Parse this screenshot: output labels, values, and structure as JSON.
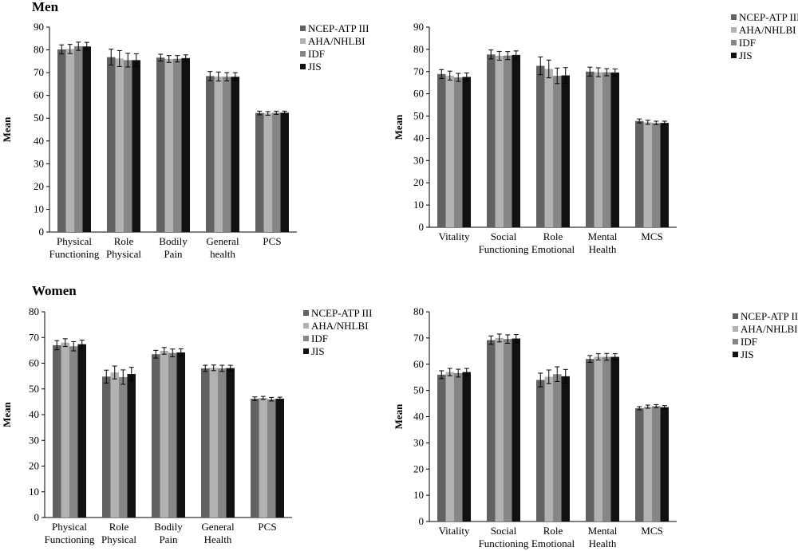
{
  "sections": [
    "Men",
    "Women"
  ],
  "series_colors": [
    "#626262",
    "#b2b2b2",
    "#868686",
    "#111111"
  ],
  "chart_data": [
    {
      "type": "bar",
      "section": "Men",
      "categories": [
        [
          "Physical",
          "Functioning"
        ],
        [
          "Role",
          "Physical"
        ],
        [
          "Bodily",
          "Pain"
        ],
        [
          "General",
          "health"
        ],
        [
          "PCS"
        ]
      ],
      "series": [
        {
          "name": "NCEP-ATP III",
          "values": [
            80.2,
            76.8,
            76.6,
            68.5,
            52.3
          ],
          "errors": [
            2.0,
            3.5,
            1.5,
            2.0,
            0.8
          ]
        },
        {
          "name": "AHA/NHLBI",
          "values": [
            80.4,
            76.2,
            76.0,
            68.3,
            52.1
          ],
          "errors": [
            2.0,
            3.5,
            1.5,
            2.0,
            0.8
          ]
        },
        {
          "name": "IDF",
          "values": [
            81.6,
            75.5,
            76.1,
            68.2,
            52.4
          ],
          "errors": [
            1.8,
            3.0,
            1.4,
            1.8,
            0.7
          ]
        },
        {
          "name": "JIS",
          "values": [
            81.5,
            75.5,
            76.4,
            68.2,
            52.4
          ],
          "errors": [
            1.8,
            2.8,
            1.4,
            1.8,
            0.7
          ]
        }
      ],
      "ylabel": "Mean",
      "ylim": [
        0,
        90
      ],
      "yticks": [
        0,
        10,
        20,
        30,
        40,
        50,
        60,
        70,
        80,
        90
      ],
      "grid": false,
      "legend": "top-right"
    },
    {
      "type": "bar",
      "section": "Men",
      "categories": [
        [
          "Vitality"
        ],
        [
          "Social",
          "Functioning"
        ],
        [
          "Role",
          "Emotional"
        ],
        [
          "Mental",
          "Health"
        ],
        [
          "MCS"
        ]
      ],
      "series": [
        {
          "name": "NCEP-ATP III",
          "values": [
            68.9,
            77.7,
            72.6,
            70.0,
            47.8
          ],
          "errors": [
            2.0,
            2.0,
            4.0,
            2.0,
            0.9
          ]
        },
        {
          "name": "AHA/NHLBI",
          "values": [
            68.2,
            77.1,
            71.2,
            69.7,
            47.2
          ],
          "errors": [
            2.0,
            2.0,
            4.0,
            2.0,
            0.9
          ]
        },
        {
          "name": "IDF",
          "values": [
            67.4,
            77.2,
            68.1,
            69.7,
            46.9
          ],
          "errors": [
            1.8,
            1.8,
            3.5,
            1.6,
            0.8
          ]
        },
        {
          "name": "JIS",
          "values": [
            67.6,
            77.5,
            68.3,
            69.6,
            46.9
          ],
          "errors": [
            1.8,
            1.8,
            3.5,
            1.6,
            0.8
          ]
        }
      ],
      "ylabel": "Mean",
      "ylim": [
        0,
        90
      ],
      "yticks": [
        0,
        10,
        20,
        30,
        40,
        50,
        60,
        70,
        80,
        90
      ],
      "grid": false,
      "legend": "top-right"
    },
    {
      "type": "bar",
      "section": "Women",
      "categories": [
        [
          "Physical",
          "Functioning"
        ],
        [
          "Role",
          "Physical"
        ],
        [
          "Bodily",
          "Pain"
        ],
        [
          "General",
          "Health"
        ],
        [
          "PCS"
        ]
      ],
      "series": [
        {
          "name": "NCEP-ATP III",
          "values": [
            67.0,
            54.8,
            63.5,
            58.0,
            46.2
          ],
          "errors": [
            1.8,
            2.5,
            1.5,
            1.2,
            0.7
          ]
        },
        {
          "name": "AHA/NHLBI",
          "values": [
            68.0,
            56.4,
            64.8,
            58.2,
            46.5
          ],
          "errors": [
            1.5,
            2.5,
            1.3,
            1.1,
            0.6
          ]
        },
        {
          "name": "IDF",
          "values": [
            66.6,
            54.6,
            64.0,
            58.0,
            46.0
          ],
          "errors": [
            1.8,
            2.8,
            1.5,
            1.2,
            0.7
          ]
        },
        {
          "name": "JIS",
          "values": [
            67.4,
            55.8,
            64.2,
            58.1,
            46.2
          ],
          "errors": [
            1.6,
            2.6,
            1.4,
            1.1,
            0.6
          ]
        }
      ],
      "ylabel": "Mean",
      "ylim": [
        0,
        80
      ],
      "yticks": [
        0,
        10,
        20,
        30,
        40,
        50,
        60,
        70,
        80
      ],
      "grid": false,
      "legend": "top-right"
    },
    {
      "type": "bar",
      "section": "Women",
      "categories": [
        [
          "Vitality"
        ],
        [
          "Social",
          "Functioning"
        ],
        [
          "Role",
          "Emotional"
        ],
        [
          "Mental",
          "Health"
        ],
        [
          "MCS"
        ]
      ],
      "series": [
        {
          "name": "NCEP-ATP III",
          "values": [
            56.0,
            69.2,
            54.0,
            62.0,
            43.2
          ],
          "errors": [
            1.5,
            1.6,
            2.6,
            1.3,
            0.6
          ]
        },
        {
          "name": "AHA/NHLBI",
          "values": [
            57.0,
            70.0,
            55.2,
            62.8,
            43.8
          ],
          "errors": [
            1.4,
            1.5,
            2.6,
            1.2,
            0.6
          ]
        },
        {
          "name": "IDF",
          "values": [
            56.6,
            69.6,
            56.2,
            62.8,
            44.0
          ],
          "errors": [
            1.5,
            1.6,
            2.8,
            1.3,
            0.6
          ]
        },
        {
          "name": "JIS",
          "values": [
            57.0,
            69.8,
            55.4,
            62.8,
            43.6
          ],
          "errors": [
            1.4,
            1.5,
            2.6,
            1.2,
            0.6
          ]
        }
      ],
      "ylabel": "Mean",
      "ylim": [
        0,
        80
      ],
      "yticks": [
        0,
        10,
        20,
        30,
        40,
        50,
        60,
        70,
        80
      ],
      "grid": false,
      "legend": "top-right"
    }
  ]
}
